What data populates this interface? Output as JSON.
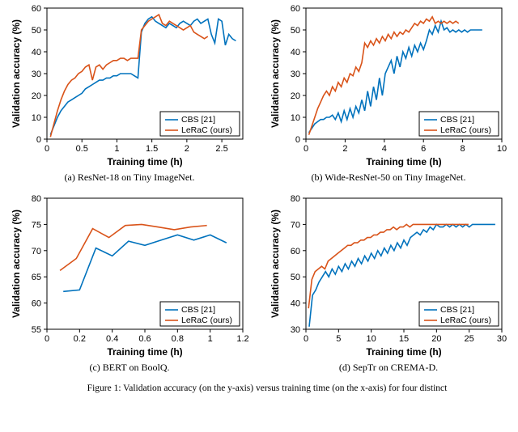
{
  "figure_caption": "Figure 1: Validation accuracy (on the y-axis) versus training time (on the x-axis) for four distinct",
  "colors": {
    "cbs": "#0072bd",
    "lerac": "#d95319",
    "axis": "#000000",
    "bg": "#ffffff"
  },
  "line_width": 1.6,
  "panels": [
    {
      "id": "a",
      "caption": "(a) ResNet-18 on Tiny ImageNet.",
      "xlabel": "Training time (h)",
      "ylabel": "Validation accuracy (%)",
      "xlim": [
        0,
        2.8
      ],
      "ylim": [
        0,
        60
      ],
      "xticks": [
        0,
        0.5,
        1.0,
        1.5,
        2.0,
        2.5
      ],
      "yticks": [
        0,
        10,
        20,
        30,
        40,
        50,
        60
      ],
      "legend_pos": "br",
      "series": [
        {
          "name": "CBS [21]",
          "color_key": "cbs",
          "x": [
            0.05,
            0.1,
            0.15,
            0.2,
            0.25,
            0.3,
            0.35,
            0.4,
            0.45,
            0.5,
            0.55,
            0.6,
            0.65,
            0.7,
            0.75,
            0.8,
            0.85,
            0.9,
            0.95,
            1.0,
            1.05,
            1.1,
            1.15,
            1.2,
            1.25,
            1.3,
            1.35,
            1.4,
            1.45,
            1.5,
            1.55,
            1.6,
            1.65,
            1.7,
            1.75,
            1.8,
            1.85,
            1.9,
            1.95,
            2.0,
            2.05,
            2.1,
            2.15,
            2.2,
            2.25,
            2.3,
            2.35,
            2.4,
            2.45,
            2.5,
            2.55,
            2.6,
            2.65,
            2.7
          ],
          "y": [
            2,
            6,
            10,
            13,
            15,
            17,
            18,
            19,
            20,
            21,
            23,
            24,
            25,
            26,
            27,
            27,
            28,
            28,
            29,
            29,
            30,
            30,
            30,
            30,
            29,
            28,
            49,
            53,
            55,
            56,
            54,
            53,
            52,
            51,
            53,
            52,
            51,
            53,
            54,
            53,
            52,
            54,
            55,
            53,
            54,
            55,
            48,
            44,
            55,
            54,
            43,
            48,
            46,
            45
          ]
        },
        {
          "name": "LeRaC (ours)",
          "color_key": "lerac",
          "x": [
            0.05,
            0.1,
            0.15,
            0.2,
            0.25,
            0.3,
            0.35,
            0.4,
            0.45,
            0.5,
            0.55,
            0.6,
            0.65,
            0.7,
            0.75,
            0.8,
            0.85,
            0.9,
            0.95,
            1.0,
            1.05,
            1.1,
            1.15,
            1.2,
            1.25,
            1.3,
            1.35,
            1.4,
            1.45,
            1.5,
            1.55,
            1.6,
            1.65,
            1.7,
            1.75,
            1.8,
            1.85,
            1.9,
            1.95,
            2.0,
            2.05,
            2.1,
            2.15,
            2.2,
            2.25,
            2.3
          ],
          "y": [
            1,
            7,
            13,
            18,
            22,
            25,
            27,
            28,
            30,
            31,
            33,
            34,
            27,
            33,
            34,
            32,
            34,
            35,
            36,
            36,
            37,
            37,
            36,
            37,
            37,
            37,
            50,
            52,
            54,
            55,
            56,
            57,
            53,
            52,
            54,
            53,
            52,
            51,
            50,
            51,
            52,
            49,
            48,
            47,
            46,
            47
          ]
        }
      ]
    },
    {
      "id": "b",
      "caption": "(b) Wide-ResNet-50 on Tiny ImageNet.",
      "xlabel": "Training time (h)",
      "ylabel": "Validation accuracy (%)",
      "xlim": [
        0,
        10
      ],
      "ylim": [
        0,
        60
      ],
      "xticks": [
        0,
        2,
        4,
        6,
        8,
        10
      ],
      "yticks": [
        0,
        10,
        20,
        30,
        40,
        50,
        60
      ],
      "legend_pos": "br",
      "series": [
        {
          "name": "CBS [21]",
          "color_key": "cbs",
          "x": [
            0.15,
            0.3,
            0.45,
            0.6,
            0.75,
            0.9,
            1.05,
            1.2,
            1.35,
            1.5,
            1.65,
            1.8,
            1.95,
            2.1,
            2.25,
            2.4,
            2.55,
            2.7,
            2.85,
            3.0,
            3.15,
            3.3,
            3.45,
            3.6,
            3.75,
            3.9,
            4.05,
            4.2,
            4.35,
            4.5,
            4.65,
            4.8,
            4.95,
            5.1,
            5.25,
            5.4,
            5.55,
            5.7,
            5.85,
            6.0,
            6.15,
            6.3,
            6.45,
            6.6,
            6.75,
            6.9,
            7.05,
            7.2,
            7.35,
            7.5,
            7.65,
            7.8,
            7.95,
            8.1,
            8.25,
            8.4,
            8.55,
            8.7,
            8.85,
            9.0
          ],
          "y": [
            3,
            5,
            7,
            8,
            9,
            9,
            10,
            10,
            11,
            9,
            12,
            8,
            13,
            9,
            14,
            10,
            15,
            12,
            18,
            13,
            22,
            15,
            24,
            18,
            28,
            20,
            30,
            33,
            36,
            30,
            38,
            33,
            40,
            37,
            42,
            38,
            43,
            40,
            44,
            41,
            45,
            50,
            48,
            52,
            49,
            54,
            50,
            51,
            49,
            50,
            49,
            50,
            49,
            50,
            49,
            50,
            50,
            50,
            50,
            50
          ]
        },
        {
          "name": "LeRaC (ours)",
          "color_key": "lerac",
          "x": [
            0.15,
            0.3,
            0.45,
            0.6,
            0.75,
            0.9,
            1.05,
            1.2,
            1.35,
            1.5,
            1.65,
            1.8,
            1.95,
            2.1,
            2.25,
            2.4,
            2.55,
            2.7,
            2.85,
            3.0,
            3.15,
            3.3,
            3.45,
            3.6,
            3.75,
            3.9,
            4.05,
            4.2,
            4.35,
            4.5,
            4.65,
            4.8,
            4.95,
            5.1,
            5.25,
            5.4,
            5.55,
            5.7,
            5.85,
            6.0,
            6.15,
            6.3,
            6.45,
            6.6,
            6.75,
            6.9,
            7.05,
            7.2,
            7.35,
            7.5,
            7.65,
            7.8
          ],
          "y": [
            2,
            6,
            10,
            14,
            17,
            20,
            22,
            20,
            24,
            22,
            26,
            24,
            28,
            26,
            30,
            29,
            33,
            31,
            35,
            44,
            42,
            45,
            43,
            46,
            44,
            47,
            45,
            48,
            46,
            49,
            47,
            49,
            48,
            50,
            49,
            51,
            53,
            52,
            54,
            53,
            55,
            54,
            56,
            53,
            54,
            53,
            54,
            53,
            54,
            53,
            54,
            53
          ]
        }
      ]
    },
    {
      "id": "c",
      "caption": "(c) BERT on BoolQ.",
      "xlabel": "Training time (h)",
      "ylabel": "Validation accuracy (%)",
      "xlim": [
        0,
        1.2
      ],
      "ylim": [
        55,
        80
      ],
      "xticks": [
        0,
        0.2,
        0.4,
        0.6,
        0.8,
        1.0,
        1.2
      ],
      "yticks": [
        55,
        60,
        65,
        70,
        75,
        80
      ],
      "legend_pos": "br",
      "series": [
        {
          "name": "CBS [21]",
          "color_key": "cbs",
          "x": [
            0.1,
            0.2,
            0.3,
            0.4,
            0.5,
            0.6,
            0.7,
            0.8,
            0.9,
            1.0,
            1.1
          ],
          "y": [
            62.2,
            62.5,
            70.5,
            69.0,
            71.8,
            71.0,
            72.0,
            73.0,
            72.0,
            73.0,
            71.5
          ]
        },
        {
          "name": "LeRaC (ours)",
          "color_key": "lerac",
          "x": [
            0.08,
            0.18,
            0.28,
            0.38,
            0.48,
            0.58,
            0.68,
            0.78,
            0.88,
            0.98
          ],
          "y": [
            66.2,
            68.5,
            74.2,
            72.5,
            74.8,
            75.0,
            74.5,
            74.0,
            74.5,
            74.8
          ]
        }
      ]
    },
    {
      "id": "d",
      "caption": "(d) SepTr on CREMA-D.",
      "xlabel": "Training time (h)",
      "ylabel": "Validation accuracy (%)",
      "xlim": [
        0,
        30
      ],
      "ylim": [
        30,
        80
      ],
      "xticks": [
        0,
        5,
        10,
        15,
        20,
        25,
        30
      ],
      "yticks": [
        30,
        40,
        50,
        60,
        70,
        80
      ],
      "legend_pos": "br",
      "series": [
        {
          "name": "CBS [21]",
          "color_key": "cbs",
          "x": [
            0.5,
            1,
            1.5,
            2,
            2.5,
            3,
            3.5,
            4,
            4.5,
            5,
            5.5,
            6,
            6.5,
            7,
            7.5,
            8,
            8.5,
            9,
            9.5,
            10,
            10.5,
            11,
            11.5,
            12,
            12.5,
            13,
            13.5,
            14,
            14.5,
            15,
            15.5,
            16,
            16.5,
            17,
            17.5,
            18,
            18.5,
            19,
            19.5,
            20,
            20.5,
            21,
            21.5,
            22,
            22.5,
            23,
            23.5,
            24,
            24.5,
            25,
            25.5,
            26,
            26.5,
            27,
            27.5,
            28,
            28.5,
            29
          ],
          "y": [
            31,
            43,
            45,
            48,
            50,
            52,
            50,
            53,
            51,
            54,
            52,
            55,
            53,
            56,
            54,
            57,
            55,
            58,
            56,
            59,
            57,
            60,
            58,
            61,
            59,
            62,
            60,
            63,
            61,
            64,
            62,
            65,
            66,
            67,
            66,
            68,
            67,
            69,
            68,
            70,
            69,
            69,
            70,
            69,
            70,
            69,
            70,
            69,
            70,
            69,
            70,
            70,
            70,
            70,
            70,
            70,
            70,
            70
          ]
        },
        {
          "name": "LeRaC (ours)",
          "color_key": "lerac",
          "x": [
            0.4,
            0.9,
            1.4,
            1.9,
            2.4,
            2.9,
            3.4,
            3.9,
            4.4,
            4.9,
            5.4,
            5.9,
            6.4,
            6.9,
            7.4,
            7.9,
            8.4,
            8.9,
            9.4,
            9.9,
            10.4,
            10.9,
            11.4,
            11.9,
            12.4,
            12.9,
            13.4,
            13.9,
            14.4,
            14.9,
            15.4,
            15.9,
            16.4,
            16.9,
            17.4,
            17.9,
            18.4,
            18.9,
            19.4,
            19.9,
            20.4,
            20.9,
            21.4,
            21.9,
            22.4,
            22.9,
            23.4,
            23.9,
            24.4,
            24.9
          ],
          "y": [
            38,
            49,
            52,
            53,
            54,
            53,
            56,
            57,
            58,
            59,
            60,
            61,
            62,
            62,
            63,
            63,
            64,
            64,
            65,
            65,
            66,
            66,
            67,
            67,
            68,
            68,
            69,
            68,
            69,
            69,
            70,
            69,
            70,
            70,
            70,
            70,
            70,
            70,
            70,
            70,
            70,
            70,
            70,
            70,
            70,
            70,
            70,
            70,
            70,
            70
          ]
        }
      ]
    }
  ],
  "legend_labels": {
    "cbs": "CBS [21]",
    "lerac": "LeRaC (ours)"
  }
}
